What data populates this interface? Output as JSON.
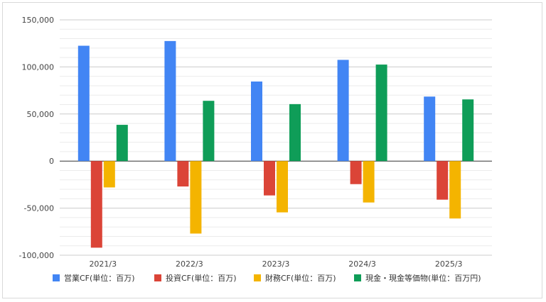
{
  "chart_data": {
    "type": "bar",
    "categories": [
      "2021/3",
      "2022/3",
      "2023/3",
      "2024/3",
      "2025/3"
    ],
    "series": [
      {
        "name": "営業CF(単位：百万)",
        "color": "#4285f4",
        "values": [
          122500,
          127500,
          84500,
          107500,
          68500
        ]
      },
      {
        "name": "投資CF(単位：百万)",
        "color": "#db4437",
        "values": [
          -92000,
          -27000,
          -36500,
          -24500,
          -41000
        ]
      },
      {
        "name": "財務CF(単位：百万)",
        "color": "#f4b400",
        "values": [
          -28000,
          -77000,
          -54500,
          -44000,
          -61000
        ]
      },
      {
        "name": "現金・現金等価物(単位：百万円)",
        "color": "#0f9d58",
        "values": [
          38500,
          64000,
          60500,
          102500,
          65500
        ]
      }
    ],
    "y_ticks": [
      "150,000",
      "100,000",
      "50,000",
      "0",
      "-50,000",
      "-100,000"
    ],
    "ylim": [
      -100000,
      150000
    ],
    "grid": true,
    "legend_position": "bottom"
  }
}
